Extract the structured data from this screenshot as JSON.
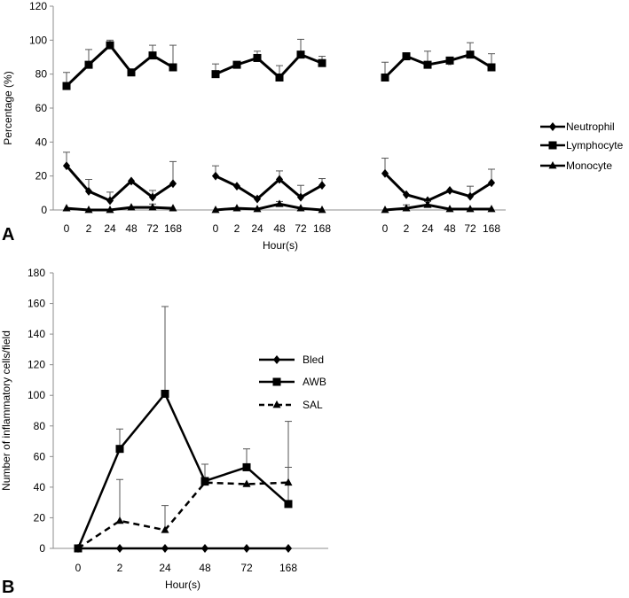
{
  "chart_data": [
    {
      "panel": "A",
      "type": "line",
      "ylabel": "Percentage (%)",
      "xlabel": "Hour(s)",
      "ylim": [
        0,
        120
      ],
      "yticks": [
        0,
        20,
        40,
        60,
        80,
        100,
        120
      ],
      "categories": [
        "0",
        "2",
        "24",
        "48",
        "72",
        "168"
      ],
      "grid": false,
      "legend": [
        "Neutrophil",
        "Lymphocyte",
        "Monocyte"
      ],
      "legend_position": "right",
      "groups": [
        {
          "series": [
            {
              "name": "Neutrophil",
              "marker": "diamond",
              "values": [
                26,
                11,
                5.5,
                17,
                7.5,
                15.5
              ],
              "err": [
                8,
                7,
                5,
                0,
                4,
                13
              ]
            },
            {
              "name": "Lymphocyte",
              "marker": "square",
              "values": [
                73,
                85.5,
                97,
                81,
                91,
                84
              ],
              "err": [
                8,
                9,
                3,
                0,
                6,
                13
              ]
            },
            {
              "name": "Monocyte",
              "marker": "triangle",
              "values": [
                1,
                0,
                0,
                1.5,
                1.5,
                1
              ],
              "err": [
                0,
                0,
                0,
                0,
                2,
                0
              ]
            }
          ]
        },
        {
          "series": [
            {
              "name": "Neutrophil",
              "marker": "diamond",
              "values": [
                20,
                14,
                6.5,
                18,
                7.5,
                14.5
              ],
              "err": [
                6,
                0,
                0,
                5,
                7,
                4
              ]
            },
            {
              "name": "Lymphocyte",
              "marker": "square",
              "values": [
                80,
                85.5,
                89.5,
                78,
                91.5,
                86.5
              ],
              "err": [
                6,
                0,
                4,
                7,
                9,
                4
              ]
            },
            {
              "name": "Monocyte",
              "marker": "triangle",
              "values": [
                0,
                1,
                0.5,
                3.5,
                1,
                0
              ],
              "err": [
                0,
                0,
                0,
                1.5,
                0,
                0
              ]
            }
          ]
        },
        {
          "series": [
            {
              "name": "Neutrophil",
              "marker": "diamond",
              "values": [
                21.5,
                9,
                5.5,
                11.5,
                8,
                16
              ],
              "err": [
                9,
                0,
                0,
                0,
                6,
                8
              ]
            },
            {
              "name": "Lymphocyte",
              "marker": "square",
              "values": [
                78,
                90.5,
                85.5,
                88,
                91.5,
                84
              ],
              "err": [
                9,
                2,
                8,
                2,
                7,
                8
              ]
            },
            {
              "name": "Monocyte",
              "marker": "triangle",
              "values": [
                0,
                1,
                3,
                0.5,
                0.5,
                0.5
              ],
              "err": [
                0,
                2,
                2,
                0,
                0,
                0
              ]
            }
          ],
          "annotation": {
            "category": "48",
            "text": "*"
          }
        }
      ]
    },
    {
      "panel": "B",
      "type": "line",
      "ylabel": "Number of inflammatory cells/field",
      "xlabel": "Hour(s)",
      "ylim": [
        0,
        180
      ],
      "yticks": [
        0,
        20,
        40,
        60,
        80,
        100,
        120,
        140,
        160,
        180
      ],
      "categories": [
        "0",
        "2",
        "24",
        "48",
        "72",
        "168"
      ],
      "grid": false,
      "legend_position": "right",
      "series": [
        {
          "name": "Bled",
          "marker": "diamond",
          "style": "solid",
          "values": [
            0,
            0,
            0,
            0,
            0,
            0
          ],
          "err": [
            0,
            0,
            0,
            0,
            0,
            0
          ]
        },
        {
          "name": "AWB",
          "marker": "square",
          "style": "solid",
          "values": [
            0,
            65,
            101,
            44,
            53,
            29
          ],
          "err": [
            0,
            13,
            57,
            11,
            12,
            24
          ]
        },
        {
          "name": "SAL",
          "marker": "triangle",
          "style": "dashed",
          "values": [
            0,
            18,
            12,
            43,
            42,
            43
          ],
          "err": [
            0,
            27,
            16,
            0,
            0,
            40
          ]
        }
      ]
    }
  ],
  "panel_letters": [
    "A",
    "B"
  ]
}
